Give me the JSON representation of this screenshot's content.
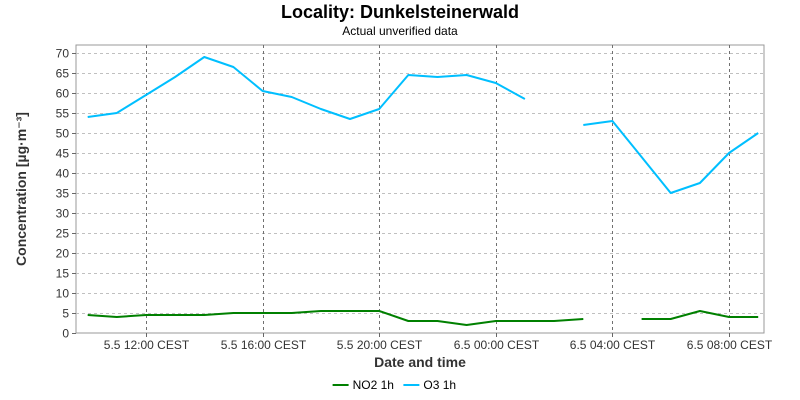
{
  "chart_data": {
    "type": "line",
    "title": "Locality: Dunkelsteinerwald",
    "subtitle": "Actual unverified data",
    "xlabel": "Date and time",
    "ylabel": "Concentration [µg·m⁻³]",
    "ylim": [
      0,
      72
    ],
    "yticks": [
      0,
      5,
      10,
      15,
      20,
      25,
      30,
      35,
      40,
      45,
      50,
      55,
      60,
      65,
      70
    ],
    "xlim": [
      9.6,
      33.2
    ],
    "xticks": [
      {
        "value": 12,
        "label": "5.5 12:00 CEST"
      },
      {
        "value": 16,
        "label": "5.5 16:00 CEST"
      },
      {
        "value": 20,
        "label": "5.5 20:00 CEST"
      },
      {
        "value": 24,
        "label": "6.5 00:00 CEST"
      },
      {
        "value": 28,
        "label": "6.5 04:00 CEST"
      },
      {
        "value": 32,
        "label": "6.5 08:00 CEST"
      }
    ],
    "x_unit_note": "hours since 5.5 00:00 CEST",
    "grid": true,
    "legend_position": "bottom-center",
    "series": [
      {
        "name": "NO2 1h",
        "color": "#008000",
        "points": [
          [
            10,
            4.5
          ],
          [
            11,
            4
          ],
          [
            12,
            4.5
          ],
          [
            13,
            4.5
          ],
          [
            14,
            4.5
          ],
          [
            15,
            5
          ],
          [
            16,
            5
          ],
          [
            17,
            5
          ],
          [
            18,
            5.5
          ],
          [
            19,
            5.5
          ],
          [
            20,
            5.5
          ],
          [
            21,
            3
          ],
          [
            22,
            3
          ],
          [
            23,
            2
          ],
          [
            24,
            3
          ],
          [
            25,
            3
          ],
          [
            26,
            3
          ],
          [
            27,
            3.5
          ],
          [
            28,
            null
          ],
          [
            29,
            3.5
          ],
          [
            30,
            3.5
          ],
          [
            31,
            5.5
          ],
          [
            32,
            4
          ],
          [
            33,
            4
          ]
        ]
      },
      {
        "name": "O3 1h",
        "color": "#00BFFF",
        "points": [
          [
            10,
            54
          ],
          [
            11,
            55
          ],
          [
            12,
            59.5
          ],
          [
            13,
            64
          ],
          [
            14,
            69
          ],
          [
            15,
            66.5
          ],
          [
            16,
            60.5
          ],
          [
            17,
            59
          ],
          [
            18,
            56
          ],
          [
            19,
            53.5
          ],
          [
            20,
            56
          ],
          [
            21,
            64.5
          ],
          [
            22,
            64
          ],
          [
            23,
            64.5
          ],
          [
            24,
            62.5
          ],
          [
            25,
            58.5
          ],
          [
            26,
            null
          ],
          [
            27,
            52
          ],
          [
            28,
            53
          ],
          [
            29,
            44
          ],
          [
            30,
            35
          ],
          [
            31,
            37.5
          ],
          [
            32,
            45
          ],
          [
            33,
            50
          ]
        ]
      }
    ]
  }
}
